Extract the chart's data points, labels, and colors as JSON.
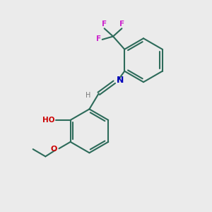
{
  "background_color": "#ebebeb",
  "bond_color": "#2d6b5a",
  "bond_width": 1.5,
  "atom_colors": {
    "F": "#cc22cc",
    "N": "#0000bb",
    "O": "#cc0000",
    "H_label": "#777777",
    "C": "#2d6b5a"
  },
  "figsize": [
    3.0,
    3.0
  ],
  "dpi": 100
}
